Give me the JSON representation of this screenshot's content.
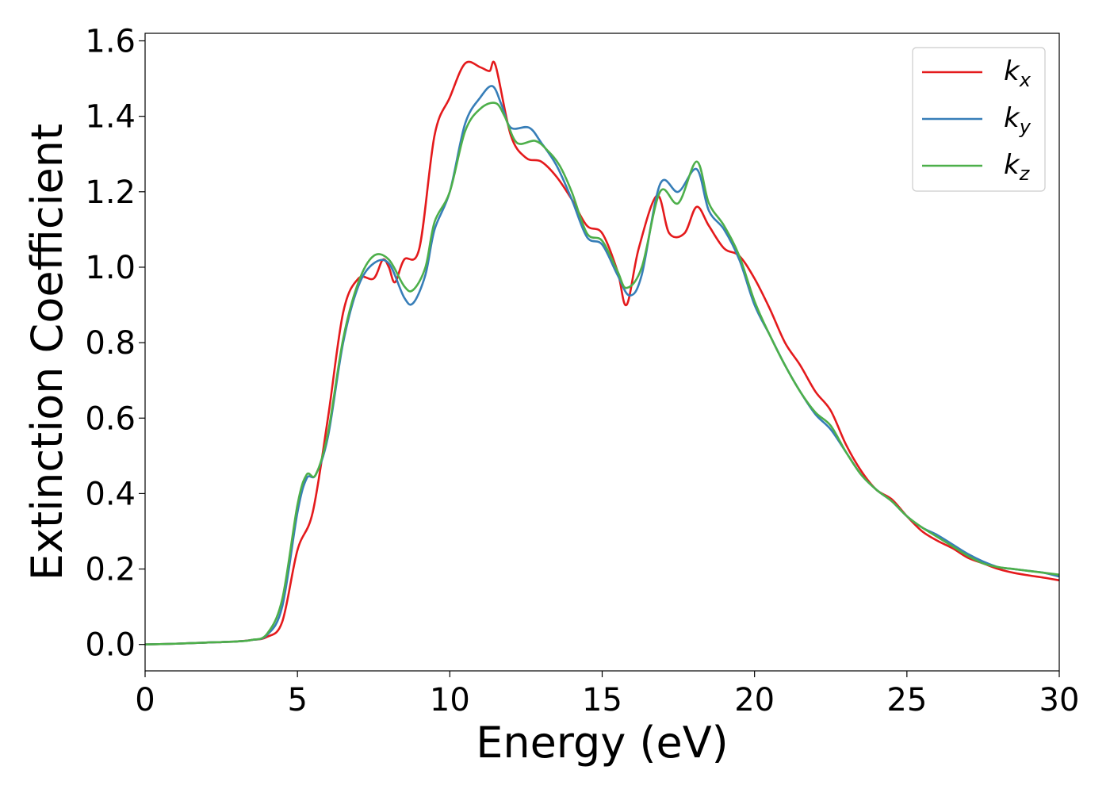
{
  "chart_data": {
    "type": "line",
    "title": "",
    "xlabel": "Energy (eV)",
    "ylabel": "Extinction Coefficient",
    "xlim": [
      0,
      30
    ],
    "ylim": [
      -0.07,
      1.62
    ],
    "xticks": [
      0,
      5,
      10,
      15,
      20,
      25,
      30
    ],
    "xtick_labels": [
      "0",
      "5",
      "10",
      "15",
      "20",
      "25",
      "30"
    ],
    "yticks": [
      0.0,
      0.2,
      0.4,
      0.6,
      0.8,
      1.0,
      1.2,
      1.4,
      1.6
    ],
    "ytick_labels": [
      "0.0",
      "0.2",
      "0.4",
      "0.6",
      "0.8",
      "1.0",
      "1.2",
      "1.4",
      "1.6"
    ],
    "grid": false,
    "legend_position": "top-right",
    "series": [
      {
        "name": "k_x",
        "legend_base": "k",
        "legend_sub": "x",
        "color": "#e41a1c",
        "points": [
          [
            0,
            0.0
          ],
          [
            1,
            0.002
          ],
          [
            2,
            0.005
          ],
          [
            3,
            0.008
          ],
          [
            3.5,
            0.012
          ],
          [
            4,
            0.02
          ],
          [
            4.5,
            0.06
          ],
          [
            5,
            0.25
          ],
          [
            5.5,
            0.35
          ],
          [
            6,
            0.6
          ],
          [
            6.5,
            0.88
          ],
          [
            7,
            0.97
          ],
          [
            7.5,
            0.97
          ],
          [
            7.8,
            1.02
          ],
          [
            8,
            1.0
          ],
          [
            8.2,
            0.96
          ],
          [
            8.5,
            1.02
          ],
          [
            9,
            1.05
          ],
          [
            9.5,
            1.35
          ],
          [
            10,
            1.45
          ],
          [
            10.5,
            1.54
          ],
          [
            11,
            1.53
          ],
          [
            11.3,
            1.52
          ],
          [
            11.5,
            1.535
          ],
          [
            12,
            1.35
          ],
          [
            12.5,
            1.29
          ],
          [
            13,
            1.28
          ],
          [
            13.5,
            1.24
          ],
          [
            14,
            1.18
          ],
          [
            14.5,
            1.11
          ],
          [
            15,
            1.09
          ],
          [
            15.5,
            0.99
          ],
          [
            15.8,
            0.9
          ],
          [
            16.2,
            1.05
          ],
          [
            16.8,
            1.19
          ],
          [
            17.2,
            1.09
          ],
          [
            17.7,
            1.09
          ],
          [
            18.1,
            1.16
          ],
          [
            18.5,
            1.11
          ],
          [
            19,
            1.05
          ],
          [
            19.5,
            1.03
          ],
          [
            20,
            0.97
          ],
          [
            20.5,
            0.89
          ],
          [
            21,
            0.8
          ],
          [
            21.5,
            0.74
          ],
          [
            22,
            0.67
          ],
          [
            22.5,
            0.62
          ],
          [
            23,
            0.53
          ],
          [
            23.5,
            0.46
          ],
          [
            24,
            0.41
          ],
          [
            24.5,
            0.385
          ],
          [
            25,
            0.34
          ],
          [
            25.5,
            0.3
          ],
          [
            26,
            0.275
          ],
          [
            26.5,
            0.255
          ],
          [
            27,
            0.23
          ],
          [
            27.5,
            0.215
          ],
          [
            28,
            0.2
          ],
          [
            28.5,
            0.19
          ],
          [
            29,
            0.183
          ],
          [
            29.5,
            0.177
          ],
          [
            30,
            0.17
          ]
        ]
      },
      {
        "name": "k_y",
        "legend_base": "k",
        "legend_sub": "y",
        "color": "#377eb8",
        "points": [
          [
            0,
            0.0
          ],
          [
            1,
            0.002
          ],
          [
            2,
            0.005
          ],
          [
            3,
            0.008
          ],
          [
            3.5,
            0.012
          ],
          [
            4,
            0.025
          ],
          [
            4.5,
            0.1
          ],
          [
            5,
            0.35
          ],
          [
            5.3,
            0.44
          ],
          [
            5.6,
            0.45
          ],
          [
            6,
            0.55
          ],
          [
            6.5,
            0.8
          ],
          [
            7,
            0.95
          ],
          [
            7.5,
            1.01
          ],
          [
            8,
            1.01
          ],
          [
            8.5,
            0.92
          ],
          [
            8.8,
            0.905
          ],
          [
            9.2,
            0.98
          ],
          [
            9.5,
            1.1
          ],
          [
            10,
            1.2
          ],
          [
            10.5,
            1.38
          ],
          [
            11,
            1.45
          ],
          [
            11.4,
            1.48
          ],
          [
            11.7,
            1.43
          ],
          [
            12,
            1.37
          ],
          [
            12.6,
            1.37
          ],
          [
            13,
            1.33
          ],
          [
            13.5,
            1.27
          ],
          [
            14,
            1.18
          ],
          [
            14.5,
            1.08
          ],
          [
            15,
            1.06
          ],
          [
            15.5,
            0.98
          ],
          [
            15.9,
            0.925
          ],
          [
            16.3,
            0.98
          ],
          [
            16.9,
            1.22
          ],
          [
            17.5,
            1.2
          ],
          [
            18.1,
            1.26
          ],
          [
            18.5,
            1.15
          ],
          [
            19,
            1.1
          ],
          [
            19.5,
            1.02
          ],
          [
            20,
            0.9
          ],
          [
            20.5,
            0.82
          ],
          [
            21,
            0.74
          ],
          [
            21.5,
            0.67
          ],
          [
            22,
            0.61
          ],
          [
            22.5,
            0.57
          ],
          [
            23,
            0.51
          ],
          [
            23.5,
            0.45
          ],
          [
            24,
            0.41
          ],
          [
            24.5,
            0.38
          ],
          [
            25,
            0.34
          ],
          [
            25.5,
            0.31
          ],
          [
            26,
            0.29
          ],
          [
            26.5,
            0.265
          ],
          [
            27,
            0.24
          ],
          [
            27.5,
            0.22
          ],
          [
            28,
            0.205
          ],
          [
            28.5,
            0.2
          ],
          [
            29,
            0.195
          ],
          [
            29.5,
            0.19
          ],
          [
            30,
            0.18
          ]
        ]
      },
      {
        "name": "k_z",
        "legend_base": "k",
        "legend_sub": "z",
        "color": "#4daf4a",
        "points": [
          [
            0,
            0.0
          ],
          [
            1,
            0.002
          ],
          [
            2,
            0.005
          ],
          [
            3,
            0.008
          ],
          [
            3.5,
            0.012
          ],
          [
            4,
            0.028
          ],
          [
            4.5,
            0.12
          ],
          [
            5,
            0.37
          ],
          [
            5.3,
            0.45
          ],
          [
            5.6,
            0.45
          ],
          [
            6,
            0.56
          ],
          [
            6.5,
            0.81
          ],
          [
            7,
            0.96
          ],
          [
            7.5,
            1.03
          ],
          [
            8,
            1.02
          ],
          [
            8.5,
            0.95
          ],
          [
            8.8,
            0.94
          ],
          [
            9.2,
            1.0
          ],
          [
            9.5,
            1.12
          ],
          [
            10,
            1.2
          ],
          [
            10.5,
            1.36
          ],
          [
            11,
            1.42
          ],
          [
            11.5,
            1.435
          ],
          [
            11.8,
            1.4
          ],
          [
            12.2,
            1.33
          ],
          [
            12.8,
            1.335
          ],
          [
            13.2,
            1.31
          ],
          [
            13.6,
            1.27
          ],
          [
            14,
            1.2
          ],
          [
            14.5,
            1.09
          ],
          [
            15,
            1.07
          ],
          [
            15.5,
            0.99
          ],
          [
            15.8,
            0.945
          ],
          [
            16.3,
            1.0
          ],
          [
            16.9,
            1.2
          ],
          [
            17.5,
            1.17
          ],
          [
            18.1,
            1.28
          ],
          [
            18.5,
            1.17
          ],
          [
            19,
            1.11
          ],
          [
            19.5,
            1.03
          ],
          [
            20,
            0.91
          ],
          [
            20.5,
            0.82
          ],
          [
            21,
            0.74
          ],
          [
            21.5,
            0.67
          ],
          [
            22,
            0.615
          ],
          [
            22.5,
            0.58
          ],
          [
            23,
            0.51
          ],
          [
            23.5,
            0.45
          ],
          [
            24,
            0.41
          ],
          [
            24.5,
            0.38
          ],
          [
            25,
            0.34
          ],
          [
            25.5,
            0.31
          ],
          [
            26,
            0.285
          ],
          [
            26.5,
            0.26
          ],
          [
            27,
            0.235
          ],
          [
            27.5,
            0.215
          ],
          [
            28,
            0.205
          ],
          [
            28.5,
            0.2
          ],
          [
            29,
            0.195
          ],
          [
            29.5,
            0.19
          ],
          [
            30,
            0.185
          ]
        ]
      }
    ]
  }
}
